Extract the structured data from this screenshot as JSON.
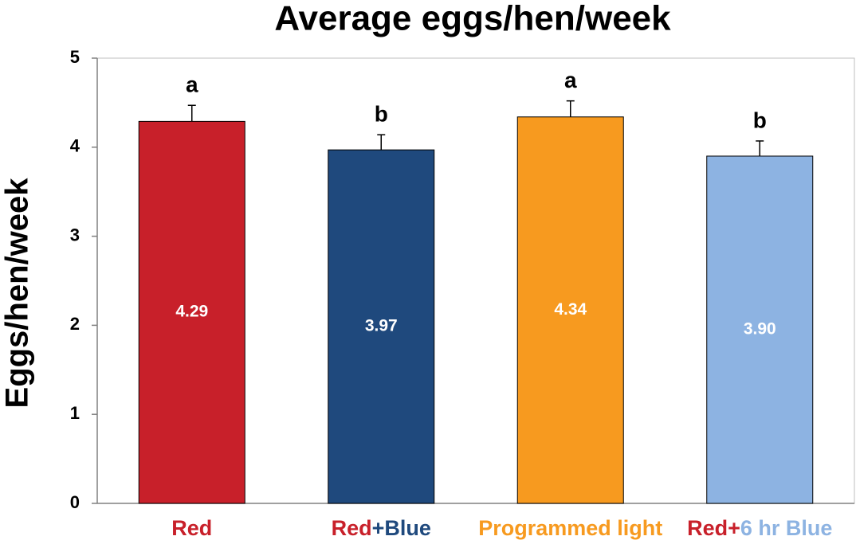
{
  "chart_data": {
    "type": "bar",
    "title": "Average eggs/hen/week",
    "y_label": "Eggs/hen/week",
    "categories": [
      [
        "Red"
      ],
      [
        "Red",
        "+Blue"
      ],
      [
        "Programmed light"
      ],
      [
        "Red+",
        "6 hr Blue"
      ]
    ],
    "category_colors": [
      [
        "#c8202a"
      ],
      [
        "#c8202a",
        "#1f497d"
      ],
      [
        "#f79a1f"
      ],
      [
        "#c8202a",
        "#8db3e2"
      ]
    ],
    "values": [
      4.29,
      3.97,
      4.34,
      3.9
    ],
    "value_labels": [
      "4.29",
      "3.97",
      "4.34",
      "3.90"
    ],
    "errors": [
      0.18,
      0.17,
      0.18,
      0.17
    ],
    "annotations": [
      "a",
      "b",
      "a",
      "b"
    ],
    "colors": [
      "#c8202a",
      "#1f497d",
      "#f79a1f",
      "#8db3e2"
    ],
    "ylim": [
      0,
      5
    ],
    "yticks": [
      0,
      1,
      2,
      3,
      4,
      5
    ],
    "grid": false
  }
}
